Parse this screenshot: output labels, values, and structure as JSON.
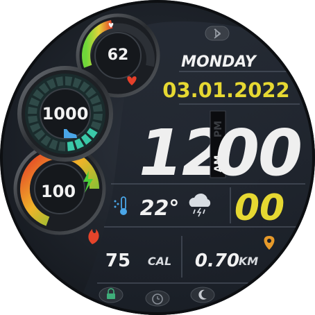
{
  "date": {
    "weekday": "MONDAY",
    "date": "03.01.2022"
  },
  "time": {
    "hours": "12",
    "minutes": "00",
    "seconds": "00",
    "ampm_am": "AM",
    "ampm_pm": "PM"
  },
  "weather": {
    "temperature": "22°",
    "icon": "cloud-rain-lightning-icon"
  },
  "heart_rate": {
    "value": "62",
    "gauge_fraction": 0.45
  },
  "steps": {
    "value": "1000",
    "gauge_fraction": 0.18
  },
  "battery": {
    "value": "100",
    "gauge_fraction": 1.0
  },
  "calories": {
    "value": "75",
    "unit": "CAL"
  },
  "distance": {
    "value": "0.70",
    "unit": "KM"
  },
  "colors": {
    "accent_yellow": "#e6d832",
    "text_white": "#f2f2f2",
    "bg": "#1d222b",
    "teal": "#3ac9a8"
  },
  "icons": [
    "bluetooth-icon",
    "heart-icon",
    "shoe-icon",
    "lightning-icon",
    "thermometer-icon",
    "flame-icon",
    "location-pin-icon",
    "lock-icon",
    "alarm-icon",
    "moon-icon"
  ]
}
